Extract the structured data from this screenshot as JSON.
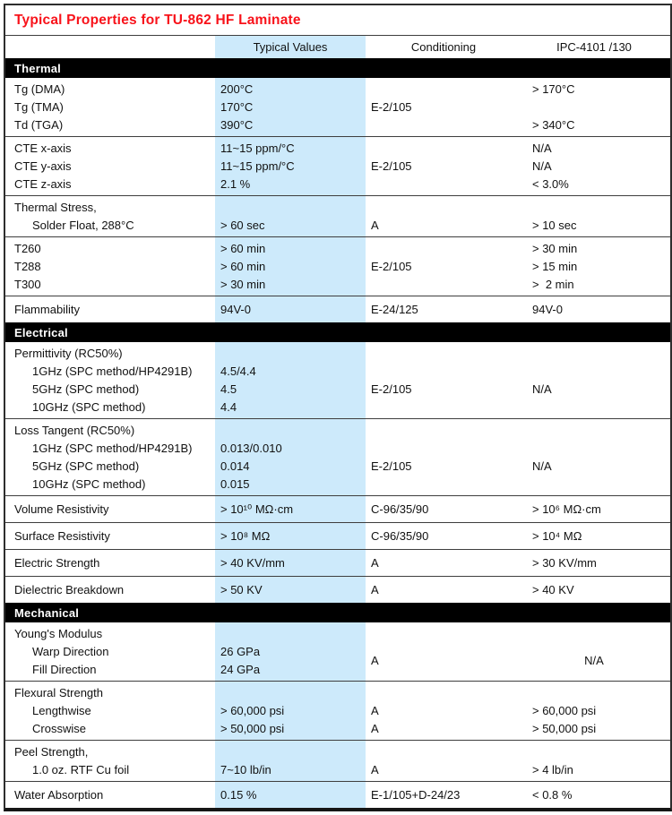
{
  "title": "Typical Properties for TU-862 HF Laminate",
  "columns": {
    "property": "",
    "typical": "Typical Values",
    "conditioning": "Conditioning",
    "ipc": "IPC-4101 /130"
  },
  "colors": {
    "title_red": "#f8121a",
    "typical_band_blue": "#cdeafb",
    "section_bar_bg": "#000000",
    "section_bar_text": "#ffffff"
  },
  "sections": [
    {
      "name": "Thermal",
      "groups": [
        {
          "rows": [
            {
              "label": "Tg (DMA)",
              "typ": "200°C",
              "cond": "",
              "ipc": "> 170°C"
            },
            {
              "label": "Tg (TMA)",
              "typ": "170°C",
              "cond": "E-2/105",
              "ipc": ""
            },
            {
              "label": "Td (TGA)",
              "typ": "390°C",
              "cond": "",
              "ipc": "> 340°C"
            }
          ]
        },
        {
          "rows": [
            {
              "label": "CTE x-axis",
              "typ": "11~15 ppm/°C",
              "cond": "",
              "ipc": "N/A"
            },
            {
              "label": "CTE y-axis",
              "typ": "11~15 ppm/°C",
              "cond": "E-2/105",
              "ipc": "N/A"
            },
            {
              "label": "CTE z-axis",
              "typ": "2.1 %",
              "cond": "",
              "ipc": "< 3.0%"
            }
          ]
        },
        {
          "rows": [
            {
              "label": "Thermal Stress,",
              "typ": "",
              "cond": "",
              "ipc": ""
            },
            {
              "label": "Solder Float, 288°C",
              "indent": true,
              "typ": "> 60 sec",
              "cond": "A",
              "ipc": "> 10 sec"
            }
          ]
        },
        {
          "rows": [
            {
              "label": "T260",
              "typ": "> 60 min",
              "cond": "",
              "ipc": "> 30 min"
            },
            {
              "label": "T288",
              "typ": "> 60 min",
              "cond": "E-2/105",
              "ipc": "> 15 min"
            },
            {
              "label": "T300",
              "typ": "> 30 min",
              "cond": "",
              "ipc": ">  2 min"
            }
          ]
        },
        {
          "single": true,
          "rows": [
            {
              "label": "Flammability",
              "typ": "94V-0",
              "cond": "E-24/125",
              "ipc": "94V-0"
            }
          ]
        }
      ]
    },
    {
      "name": "Electrical",
      "groups": [
        {
          "rows": [
            {
              "label": "Permittivity (RC50%)",
              "typ": "",
              "cond": "",
              "ipc": ""
            },
            {
              "label": "1GHz (SPC method/HP4291B)",
              "indent": true,
              "typ": "4.5/4.4",
              "cond": "",
              "ipc": ""
            },
            {
              "label": "5GHz (SPC method)",
              "indent": true,
              "typ": "4.5",
              "cond": "E-2/105",
              "ipc": "N/A"
            },
            {
              "label": "10GHz (SPC method)",
              "indent": true,
              "typ": "4.4",
              "cond": "",
              "ipc": ""
            }
          ]
        },
        {
          "rows": [
            {
              "label": "Loss Tangent (RC50%)",
              "typ": "",
              "cond": "",
              "ipc": ""
            },
            {
              "label": "1GHz (SPC method/HP4291B)",
              "indent": true,
              "typ": "0.013/0.010",
              "cond": "",
              "ipc": ""
            },
            {
              "label": "5GHz (SPC method)",
              "indent": true,
              "typ": "0.014",
              "cond": "E-2/105",
              "ipc": "N/A"
            },
            {
              "label": "10GHz (SPC method)",
              "indent": true,
              "typ": "0.015",
              "cond": "",
              "ipc": ""
            }
          ]
        },
        {
          "single": true,
          "rows": [
            {
              "label": "Volume Resistivity",
              "typ": "> 10¹⁰ MΩ·cm",
              "cond": "C-96/35/90",
              "ipc": "> 10⁶ MΩ·cm"
            }
          ]
        },
        {
          "single": true,
          "rows": [
            {
              "label": "Surface Resistivity",
              "typ": "> 10⁸ MΩ",
              "cond": "C-96/35/90",
              "ipc": "> 10⁴ MΩ"
            }
          ]
        },
        {
          "single": true,
          "rows": [
            {
              "label": "Electric Strength",
              "typ": "> 40 KV/mm",
              "cond": "A",
              "ipc": "> 30 KV/mm"
            }
          ]
        },
        {
          "single": true,
          "rows": [
            {
              "label": "Dielectric Breakdown",
              "typ": "> 50 KV",
              "cond": "A",
              "ipc": "> 40 KV"
            }
          ]
        }
      ]
    },
    {
      "name": "Mechanical",
      "groups": [
        {
          "rows": [
            {
              "label": "Young's Modulus",
              "typ": "",
              "cond": "",
              "ipc": ""
            },
            {
              "label": "Warp Direction",
              "indent": true,
              "typ": "26 GPa",
              "cond": "A",
              "ipc": "N/A",
              "straddle": true
            },
            {
              "label": "Fill Direction",
              "indent": true,
              "typ": "24 GPa",
              "cond": "",
              "ipc": ""
            }
          ]
        },
        {
          "rows": [
            {
              "label": "Flexural Strength",
              "typ": "",
              "cond": "",
              "ipc": ""
            },
            {
              "label": "Lengthwise",
              "indent": true,
              "typ": "> 60,000 psi",
              "cond": "A",
              "ipc": "> 60,000 psi"
            },
            {
              "label": "Crosswise",
              "indent": true,
              "typ": "> 50,000 psi",
              "cond": "A",
              "ipc": "> 50,000 psi"
            }
          ]
        },
        {
          "rows": [
            {
              "label": "Peel Strength,",
              "typ": "",
              "cond": "",
              "ipc": ""
            },
            {
              "label": "1.0 oz. RTF Cu foil",
              "indent": true,
              "typ": "7~10 lb/in",
              "cond": "A",
              "ipc": "> 4 lb/in"
            }
          ]
        },
        {
          "single": true,
          "rows": [
            {
              "label": "Water Absorption",
              "typ": "0.15 %",
              "cond": "E-1/105+D-24/23",
              "ipc": "< 0.8 %"
            }
          ]
        }
      ]
    }
  ]
}
